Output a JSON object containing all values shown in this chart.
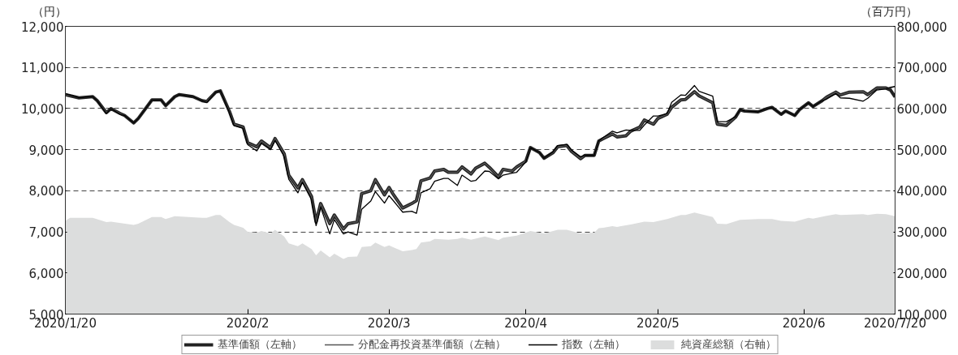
{
  "chart_data": {
    "type": "line",
    "ylabel": "（円）",
    "y2label": "（百万円）",
    "x": [
      "2020-01-20",
      "2020-01-23",
      "2020-01-26",
      "2020-01-27",
      "2020-01-29",
      "2020-01-30",
      "2020-02-01",
      "2020-02-02",
      "2020-02-04",
      "2020-02-05",
      "2020-02-08",
      "2020-02-10",
      "2020-02-11",
      "2020-02-13",
      "2020-02-14",
      "2020-02-17",
      "2020-02-19",
      "2020-02-20",
      "2020-02-22",
      "2020-02-23",
      "2020-02-25",
      "2020-02-26",
      "2020-02-28",
      "2020-02-29",
      "2020-03-02",
      "2020-03-03",
      "2020-03-05",
      "2020-03-06",
      "2020-03-08",
      "2020-03-09",
      "2020-03-11",
      "2020-03-12",
      "2020-03-14",
      "2020-03-15",
      "2020-03-16",
      "2020-03-18",
      "2020-03-19",
      "2020-03-21",
      "2020-03-22",
      "2020-03-24",
      "2020-03-25",
      "2020-03-27",
      "2020-03-28",
      "2020-03-30",
      "2020-03-31",
      "2020-04-01",
      "2020-04-03",
      "2020-04-05",
      "2020-04-06",
      "2020-04-07",
      "2020-04-09",
      "2020-04-10",
      "2020-04-12",
      "2020-04-13",
      "2020-04-15",
      "2020-04-16",
      "2020-04-18",
      "2020-04-19",
      "2020-04-21",
      "2020-04-22",
      "2020-04-24",
      "2020-04-25",
      "2020-04-27",
      "2020-04-28",
      "2020-04-30",
      "2020-05-01",
      "2020-05-03",
      "2020-05-04",
      "2020-05-06",
      "2020-05-07",
      "2020-05-09",
      "2020-05-10",
      "2020-05-12",
      "2020-05-13",
      "2020-05-15",
      "2020-05-16",
      "2020-05-17",
      "2020-05-19",
      "2020-05-20",
      "2020-05-22",
      "2020-05-23",
      "2020-05-25",
      "2020-05-26",
      "2020-05-28",
      "2020-05-29",
      "2020-05-31",
      "2020-06-01",
      "2020-06-03",
      "2020-06-04",
      "2020-06-06",
      "2020-06-07",
      "2020-06-10",
      "2020-06-11",
      "2020-06-13",
      "2020-06-15",
      "2020-06-16",
      "2020-06-17",
      "2020-06-20",
      "2020-06-22",
      "2020-06-23",
      "2020-06-25",
      "2020-06-26",
      "2020-06-28",
      "2020-06-29",
      "2020-07-01",
      "2020-07-02",
      "2020-07-04",
      "2020-07-05",
      "2020-07-07",
      "2020-07-08",
      "2020-07-10",
      "2020-07-13",
      "2020-07-14",
      "2020-07-16",
      "2020-07-18",
      "2020-07-19",
      "2020-07-20"
    ],
    "xlim": [
      "2020-01-20",
      "2020-07-20"
    ],
    "xticks": [
      {
        "value": "2020-01-20",
        "label": "2020/1/20"
      },
      {
        "value": "2020-02-29",
        "label": "2020/2"
      },
      {
        "value": "2020-03-31",
        "label": "2020/3"
      },
      {
        "value": "2020-04-30",
        "label": "2020/4"
      },
      {
        "value": "2020-05-29",
        "label": "2020/5"
      },
      {
        "value": "2020-06-30",
        "label": "2020/6"
      },
      {
        "value": "2020-07-20",
        "label": "2020/7/20"
      }
    ],
    "ylim": [
      5000,
      12000
    ],
    "yticks": [
      {
        "value": 5000,
        "label": "5,000"
      },
      {
        "value": 6000,
        "label": "6,000"
      },
      {
        "value": 7000,
        "label": "7,000"
      },
      {
        "value": 8000,
        "label": "8,000"
      },
      {
        "value": 9000,
        "label": "9,000"
      },
      {
        "value": 10000,
        "label": "10,000"
      },
      {
        "value": 11000,
        "label": "11,000"
      },
      {
        "value": 12000,
        "label": "12,000"
      }
    ],
    "y2lim": [
      100000,
      800000
    ],
    "y2ticks": [
      {
        "value": 100000,
        "label": "100,000"
      },
      {
        "value": 200000,
        "label": "200,000"
      },
      {
        "value": 300000,
        "label": "300,000"
      },
      {
        "value": 400000,
        "label": "400,000"
      },
      {
        "value": 500000,
        "label": "500,000"
      },
      {
        "value": 600000,
        "label": "600,000"
      },
      {
        "value": 700000,
        "label": "700,000"
      },
      {
        "value": 800000,
        "label": "800,000"
      }
    ],
    "grid": "y",
    "legend": "bottom",
    "line_style": "solid",
    "series": [
      {
        "name": "基準価額（左軸）",
        "color": "#222222",
        "values": [
          10340,
          10260,
          10290,
          10190,
          9900,
          10000,
          9880,
          9830,
          9650,
          9760,
          10210,
          10210,
          10070,
          10290,
          10340,
          10290,
          10190,
          10170,
          10400,
          10430,
          9930,
          9620,
          9550,
          9170,
          9070,
          9210,
          9050,
          9270,
          8900,
          8380,
          8070,
          8270,
          7860,
          7240,
          7690,
          7200,
          7410,
          7070,
          7200,
          7240,
          7930,
          8000,
          8270,
          7900,
          8080,
          7900,
          7580,
          7690,
          7760,
          8240,
          8310,
          8480,
          8520,
          8450,
          8450,
          8580,
          8410,
          8550,
          8670,
          8570,
          8340,
          8520,
          8480,
          8580,
          8720,
          9050,
          8930,
          8790,
          8930,
          9070,
          9100,
          8960,
          8780,
          8860,
          8860,
          9210,
          9270,
          9380,
          9310,
          9340,
          9450,
          9550,
          9720,
          9620,
          9760,
          9860,
          10030,
          10210,
          10220,
          10410,
          10310,
          10140,
          9620,
          9590,
          9790,
          9970,
          9940,
          9920,
          10000,
          10030,
          9860,
          9940,
          9830,
          9970,
          10140,
          10050,
          10190,
          10280,
          10400,
          10330,
          10400,
          10410,
          10340,
          10500,
          10500,
          10450,
          10280
        ]
      },
      {
        "name": "分配金再投資基準価額（左軸）",
        "color": "#555555",
        "values": [
          10340,
          10260,
          10290,
          10190,
          9900,
          10000,
          9880,
          9830,
          9650,
          9760,
          10210,
          10210,
          10070,
          10290,
          10340,
          10290,
          10190,
          10170,
          10400,
          10430,
          9930,
          9620,
          9550,
          9170,
          9070,
          9210,
          9050,
          9270,
          8900,
          8380,
          8070,
          8270,
          7860,
          7240,
          7690,
          7200,
          7410,
          7070,
          7200,
          7240,
          7930,
          8000,
          8270,
          7900,
          8080,
          7900,
          7580,
          7690,
          7760,
          8240,
          8310,
          8480,
          8520,
          8450,
          8450,
          8580,
          8410,
          8550,
          8670,
          8570,
          8340,
          8520,
          8480,
          8580,
          8720,
          9050,
          8930,
          8790,
          8930,
          9070,
          9100,
          8960,
          8780,
          8860,
          8860,
          9210,
          9270,
          9380,
          9310,
          9340,
          9450,
          9550,
          9720,
          9620,
          9760,
          9860,
          10030,
          10210,
          10220,
          10410,
          10310,
          10140,
          9620,
          9590,
          9790,
          9970,
          9940,
          9920,
          10000,
          10030,
          9860,
          9940,
          9830,
          9970,
          10140,
          10050,
          10190,
          10280,
          10400,
          10330,
          10400,
          10410,
          10340,
          10500,
          10500,
          10500,
          10540
        ]
      },
      {
        "name": "指数（左軸）",
        "color": "#000000",
        "values": [
          10360,
          10260,
          10290,
          10190,
          9880,
          10000,
          9860,
          9830,
          9650,
          9760,
          10210,
          10210,
          10070,
          10290,
          10340,
          10290,
          10190,
          10150,
          10400,
          10430,
          9900,
          9580,
          9520,
          9120,
          8970,
          9150,
          9000,
          9230,
          8830,
          8280,
          7950,
          8200,
          7780,
          7150,
          7600,
          6950,
          7300,
          6950,
          7000,
          6920,
          7550,
          7750,
          7980,
          7700,
          7880,
          7750,
          7480,
          7500,
          7450,
          7950,
          8050,
          8230,
          8300,
          8300,
          8130,
          8380,
          8230,
          8250,
          8480,
          8470,
          8290,
          8380,
          8430,
          8450,
          8700,
          9050,
          8930,
          8790,
          8950,
          9100,
          9130,
          8990,
          8830,
          8860,
          8860,
          9210,
          9300,
          9450,
          9410,
          9480,
          9470,
          9470,
          9600,
          9820,
          9820,
          9880,
          10150,
          10330,
          10320,
          10560,
          10420,
          10300,
          9680,
          9680,
          9800,
          9970,
          9940,
          9920,
          10000,
          10030,
          9860,
          9940,
          9830,
          9970,
          10140,
          10050,
          10190,
          10230,
          10360,
          10260,
          10250,
          10180,
          10250,
          10450,
          10480,
          10520,
          10540
        ]
      },
      {
        "name": "純資産総額（右軸）",
        "type": "area",
        "axis": "y2",
        "color": "#dcdddd",
        "x": [
          "2020-01-20",
          "2020-01-21",
          "2020-01-26",
          "2020-01-29",
          "2020-01-30",
          "2020-02-04",
          "2020-02-05",
          "2020-02-08",
          "2020-02-10",
          "2020-02-11",
          "2020-02-13",
          "2020-02-19",
          "2020-02-20",
          "2020-02-22",
          "2020-02-23",
          "2020-02-25",
          "2020-02-26",
          "2020-02-28",
          "2020-02-29",
          "2020-03-02",
          "2020-03-03",
          "2020-03-05",
          "2020-03-06",
          "2020-03-08",
          "2020-03-09",
          "2020-03-11",
          "2020-03-12",
          "2020-03-14",
          "2020-03-15",
          "2020-03-16",
          "2020-03-18",
          "2020-03-19",
          "2020-03-21",
          "2020-03-22",
          "2020-03-24",
          "2020-03-25",
          "2020-03-27",
          "2020-03-28",
          "2020-03-30",
          "2020-03-31",
          "2020-04-01",
          "2020-04-03",
          "2020-04-05",
          "2020-04-06",
          "2020-04-07",
          "2020-04-09",
          "2020-04-10",
          "2020-04-13",
          "2020-04-15",
          "2020-04-16",
          "2020-04-18",
          "2020-04-21",
          "2020-04-24",
          "2020-04-25",
          "2020-04-28",
          "2020-05-01",
          "2020-05-04",
          "2020-05-07",
          "2020-05-09",
          "2020-05-12",
          "2020-05-15",
          "2020-05-16",
          "2020-05-17",
          "2020-05-19",
          "2020-05-20",
          "2020-05-23",
          "2020-05-26",
          "2020-05-28",
          "2020-05-31",
          "2020-06-03",
          "2020-06-04",
          "2020-06-06",
          "2020-06-10",
          "2020-06-11",
          "2020-06-13",
          "2020-06-16",
          "2020-06-20",
          "2020-06-23",
          "2020-06-25",
          "2020-06-28",
          "2020-07-01",
          "2020-07-02",
          "2020-07-05",
          "2020-07-07",
          "2020-07-08",
          "2020-07-13",
          "2020-07-14",
          "2020-07-16",
          "2020-07-18",
          "2020-07-20"
        ],
        "values": [
          327000,
          334000,
          334000,
          324000,
          325000,
          317000,
          320000,
          336000,
          336000,
          331000,
          338000,
          334000,
          334000,
          341000,
          341000,
          324000,
          317000,
          310000,
          300000,
          298000,
          302000,
          296000,
          305000,
          289000,
          272000,
          265000,
          272000,
          258000,
          243000,
          255000,
          238000,
          247000,
          234000,
          239000,
          240000,
          263000,
          265000,
          274000,
          263000,
          267000,
          262000,
          253000,
          256000,
          258000,
          274000,
          277000,
          283000,
          281000,
          283000,
          286000,
          281000,
          289000,
          280000,
          286000,
          291000,
          302000,
          296000,
          305000,
          305000,
          296000,
          298000,
          309000,
          310000,
          314000,
          312000,
          318000,
          325000,
          324000,
          331000,
          341000,
          341000,
          347000,
          336000,
          320000,
          319000,
          329000,
          331000,
          331000,
          327000,
          325000,
          334000,
          332000,
          339000,
          343000,
          341000,
          343000,
          341000,
          344000,
          343000,
          338000
        ]
      }
    ]
  }
}
